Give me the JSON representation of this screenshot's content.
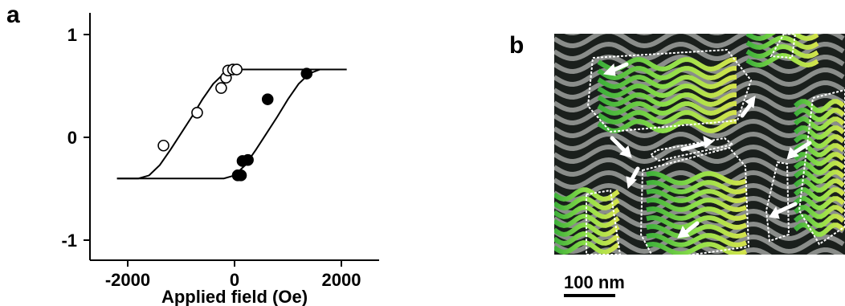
{
  "figure": {
    "panel_a_label": "a",
    "panel_b_label": "b",
    "scale_bar_label": "100 nm"
  },
  "chart_data": {
    "type": "scatter",
    "title": "",
    "xlabel": "Applied field (Oe)",
    "ylabel": "",
    "xlim": [
      -3000,
      3000
    ],
    "ylim": [
      -1.2,
      1.2
    ],
    "x_ticks": [
      -2000,
      0,
      2000
    ],
    "x_tick_labels": [
      "-2000",
      "0",
      "2000"
    ],
    "y_ticks": [
      1,
      0,
      -1
    ],
    "y_tick_labels": [
      "1",
      "0",
      "-1"
    ],
    "grid": false,
    "legend": "none",
    "series": [
      {
        "marker": "open-circle",
        "x": [
          -1330,
          -700,
          -250,
          -160,
          -120,
          -30,
          40
        ],
        "y": [
          -0.08,
          0.24,
          0.48,
          0.58,
          0.65,
          0.66,
          0.66
        ]
      },
      {
        "marker": "filled-circle",
        "x": [
          1350,
          620,
          250,
          150,
          60,
          120
        ],
        "y": [
          0.62,
          0.37,
          -0.22,
          -0.23,
          -0.37,
          -0.37
        ]
      }
    ],
    "curves": [
      {
        "style": "line",
        "x": [
          -2200,
          -1800,
          -1600,
          -1400,
          -1200,
          -1000,
          -800,
          -600,
          -400,
          -200,
          0,
          200,
          2100
        ],
        "y": [
          -0.4,
          -0.4,
          -0.37,
          -0.27,
          -0.12,
          0.04,
          0.2,
          0.37,
          0.52,
          0.62,
          0.66,
          0.66,
          0.66
        ]
      },
      {
        "style": "line",
        "x": [
          -2200,
          -200,
          0,
          200,
          400,
          600,
          800,
          1000,
          1200,
          1400,
          1600,
          1800,
          2100
        ],
        "y": [
          -0.4,
          -0.4,
          -0.37,
          -0.27,
          -0.12,
          0.04,
          0.2,
          0.37,
          0.52,
          0.62,
          0.66,
          0.66,
          0.66
        ]
      }
    ]
  }
}
